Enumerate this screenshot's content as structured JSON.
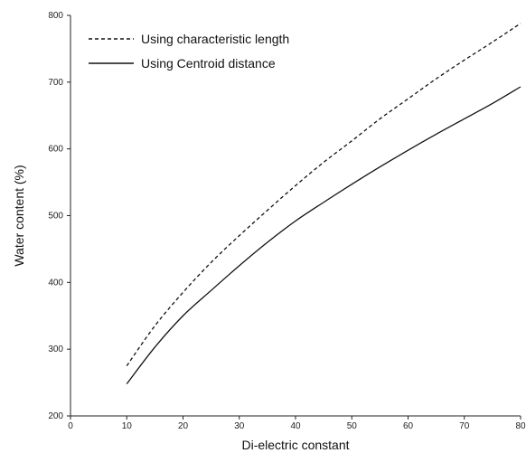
{
  "chart_data": {
    "type": "line",
    "xlabel": "Di-electric constant",
    "ylabel": "Water content (%)",
    "xlim": [
      0,
      80
    ],
    "ylim": [
      200,
      800
    ],
    "xticks": [
      "0",
      "10",
      "20",
      "30",
      "40",
      "50",
      "60",
      "70",
      "80"
    ],
    "yticks": [
      "200",
      "300",
      "400",
      "500",
      "600",
      "700",
      "800"
    ],
    "grid": false,
    "legend_position": "top-left",
    "series": [
      {
        "name": "Using characteristic length",
        "style": "dashed",
        "color": "#111111",
        "x": [
          10,
          15,
          20,
          25,
          30,
          35,
          40,
          45,
          50,
          55,
          60,
          65,
          70,
          75,
          80
        ],
        "y": [
          275,
          335,
          385,
          430,
          470,
          508,
          545,
          580,
          612,
          645,
          675,
          705,
          733,
          760,
          788
        ]
      },
      {
        "name": "Using Centroid distance",
        "style": "solid",
        "color": "#111111",
        "x": [
          10,
          15,
          20,
          25,
          30,
          35,
          40,
          45,
          50,
          55,
          60,
          65,
          70,
          75,
          80
        ],
        "y": [
          248,
          303,
          350,
          388,
          425,
          460,
          492,
          520,
          547,
          573,
          598,
          622,
          645,
          668,
          693
        ]
      }
    ]
  }
}
